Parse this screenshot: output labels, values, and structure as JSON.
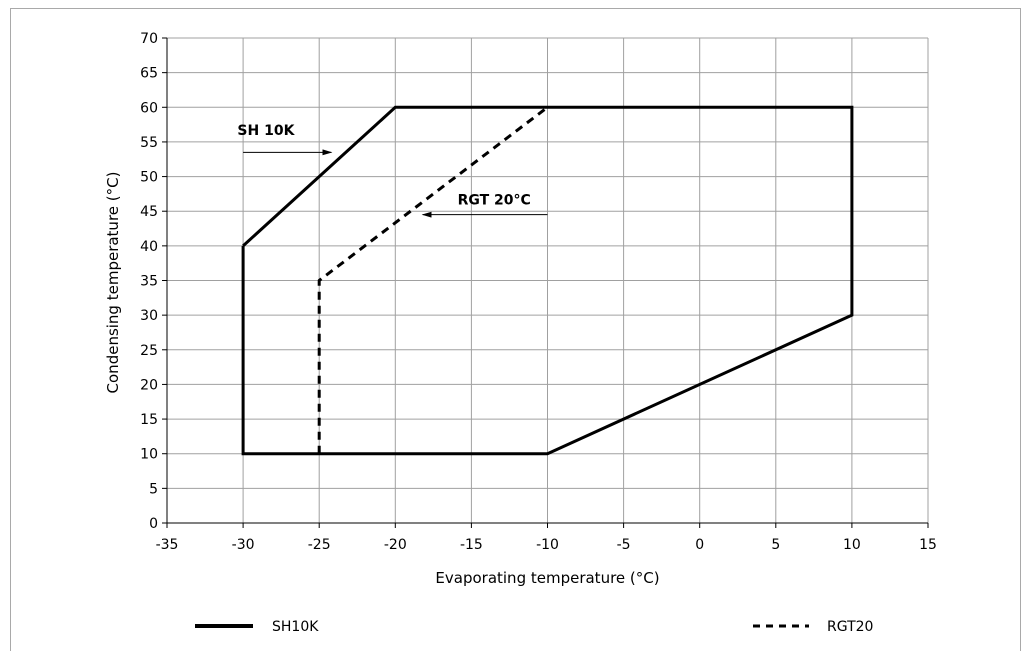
{
  "chart_data": {
    "type": "line",
    "xlabel": "Evaporating temperature (°C)",
    "ylabel": "Condensing temperature (°C)",
    "xlim": [
      -35,
      15
    ],
    "ylim": [
      0,
      70
    ],
    "xticks": [
      -35,
      -30,
      -25,
      -20,
      -15,
      -10,
      -5,
      0,
      5,
      10,
      15
    ],
    "yticks": [
      0,
      5,
      10,
      15,
      20,
      25,
      30,
      35,
      40,
      45,
      50,
      55,
      60,
      65,
      70
    ],
    "grid": true,
    "legend_position": "bottom",
    "series": [
      {
        "name": "SH10K",
        "style": "solid",
        "color": "#000000",
        "x": [
          -30,
          -20,
          10,
          10,
          -10,
          -30,
          -30
        ],
        "y": [
          40,
          60,
          60,
          30,
          10,
          10,
          40
        ]
      },
      {
        "name": "RGT20",
        "style": "dashed",
        "color": "#000000",
        "x": [
          -25,
          -25,
          -10
        ],
        "y": [
          10,
          35,
          60
        ]
      }
    ],
    "annotations": [
      {
        "text": "SH 10K",
        "x": -28.5,
        "y": 56,
        "arrow_from": [
          -30,
          53.5
        ],
        "arrow_to": [
          -24.2,
          53.5
        ]
      },
      {
        "text": "RGT 20°C",
        "x": -13.5,
        "y": 46,
        "arrow_from": [
          -10,
          44.5
        ],
        "arrow_to": [
          -18.2,
          44.5
        ]
      }
    ]
  }
}
